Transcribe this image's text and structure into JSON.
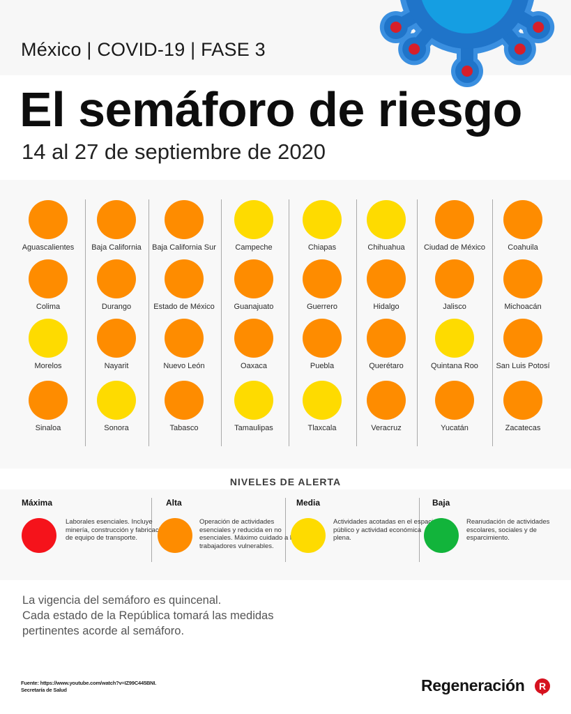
{
  "header": {
    "kicker": "México | COVID-19 | FASE 3",
    "title": "El semáforo de riesgo",
    "subtitle": "14 al 27 de septiembre de 2020",
    "illustration": "virus-icon"
  },
  "colors": {
    "maxima": "#f5131b",
    "alta": "#fe8c00",
    "media": "#fedb00",
    "baja": "#12b43b",
    "virus_outer": "#3a8fe0",
    "virus_body": "#1f74c9",
    "virus_core": "#159ee2",
    "virus_tips": "#d71f2a"
  },
  "states": [
    {
      "name": "Aguascalientes",
      "level": "alta"
    },
    {
      "name": "Baja California",
      "level": "alta"
    },
    {
      "name": "Baja California Sur",
      "level": "alta"
    },
    {
      "name": "Campeche",
      "level": "media"
    },
    {
      "name": "Chiapas",
      "level": "media"
    },
    {
      "name": "Chihuahua",
      "level": "media"
    },
    {
      "name": "Ciudad de México",
      "level": "alta"
    },
    {
      "name": "Coahuila",
      "level": "alta"
    },
    {
      "name": "Colima",
      "level": "alta"
    },
    {
      "name": "Durango",
      "level": "alta"
    },
    {
      "name": "Estado de México",
      "level": "alta"
    },
    {
      "name": "Guanajuato",
      "level": "alta"
    },
    {
      "name": "Guerrero",
      "level": "alta"
    },
    {
      "name": "Hidalgo",
      "level": "alta"
    },
    {
      "name": "Jalisco",
      "level": "alta"
    },
    {
      "name": "Michoacán",
      "level": "alta"
    },
    {
      "name": "Morelos",
      "level": "media"
    },
    {
      "name": "Nayarit",
      "level": "alta"
    },
    {
      "name": "Nuevo León",
      "level": "alta"
    },
    {
      "name": "Oaxaca",
      "level": "alta"
    },
    {
      "name": "Puebla",
      "level": "alta"
    },
    {
      "name": "Querétaro",
      "level": "alta"
    },
    {
      "name": "Quintana Roo",
      "level": "media"
    },
    {
      "name": "San Luis Potosí",
      "level": "alta"
    },
    {
      "name": "Sinaloa",
      "level": "alta"
    },
    {
      "name": "Sonora",
      "level": "media"
    },
    {
      "name": "Tabasco",
      "level": "alta"
    },
    {
      "name": "Tamaulipas",
      "level": "media"
    },
    {
      "name": "Tlaxcala",
      "level": "media"
    },
    {
      "name": "Veracruz",
      "level": "alta"
    },
    {
      "name": "Yucatán",
      "level": "alta"
    },
    {
      "name": "Zacatecas",
      "level": "alta"
    }
  ],
  "legend": {
    "title": "NIVELES DE ALERTA",
    "levels": [
      {
        "key": "maxima",
        "name": "Máxima",
        "description": "Laborales esenciales. Incluye minería, construcción y fabricación de equipo de transporte."
      },
      {
        "key": "alta",
        "name": "Alta",
        "description": "Operación de actividades esenciales y reducida en no esenciales. Máximo cuidado a los trabajadores vulnerables."
      },
      {
        "key": "media",
        "name": "Media",
        "description": "Actividades acotadas en el espacio público y actividad económica plena."
      },
      {
        "key": "baja",
        "name": "Baja",
        "description": "Reanudación de actividades escolares, sociales y de esparcimiento."
      }
    ]
  },
  "note": {
    "lines": [
      "La vigencia del semáforo es quincenal.",
      "Cada estado de la República tomará las medidas",
      "pertinentes acorde al semáforo."
    ]
  },
  "source": {
    "lines": [
      "Fuente: https://www.youtube.com/watch?v=IZ99C445BNI.",
      "Secretaría de Salud"
    ]
  },
  "brand": {
    "name": "Regeneración",
    "mark": "R"
  }
}
